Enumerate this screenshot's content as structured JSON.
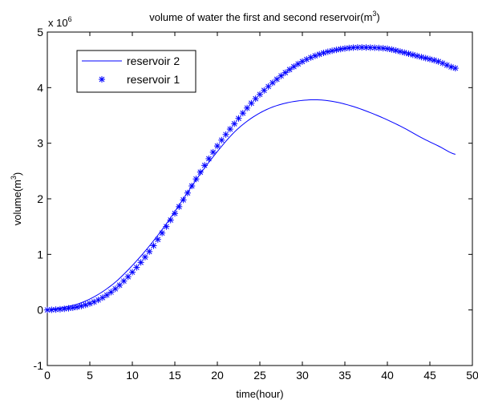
{
  "chart_data": {
    "type": "line",
    "title_main": "volume of water the first and second reservoir(m",
    "title_sup": "3",
    "title_end": ")",
    "xlabel": "time(hour)",
    "ylabel_main": "volume(m",
    "ylabel_sup": "3",
    "ylabel_end": ")",
    "y_multiplier_base": "x 10",
    "y_multiplier_exp": "6",
    "xlim": [
      0,
      50
    ],
    "ylim": [
      -1,
      5
    ],
    "x_ticks": [
      0,
      5,
      10,
      15,
      20,
      25,
      30,
      35,
      40,
      45,
      50
    ],
    "x_tick_labels": [
      "0",
      "5",
      "10",
      "15",
      "20",
      "25",
      "30",
      "35",
      "40",
      "45",
      "50"
    ],
    "y_ticks": [
      -1,
      0,
      1,
      2,
      3,
      4,
      5
    ],
    "y_tick_labels": [
      "-1",
      "0",
      "1",
      "2",
      "3",
      "4",
      "5"
    ],
    "grid": false,
    "legend_position": "top-left",
    "series": [
      {
        "name": "reservoir 2",
        "style": "line",
        "color": "#0000ff",
        "x": [
          0,
          2,
          4,
          6,
          8,
          10,
          12,
          14,
          16,
          18,
          20,
          22,
          24,
          26,
          28,
          30,
          32,
          34,
          36,
          38,
          40,
          42,
          44,
          46,
          48
        ],
        "y": [
          0,
          0.05,
          0.13,
          0.28,
          0.5,
          0.8,
          1.15,
          1.55,
          2.0,
          2.45,
          2.85,
          3.2,
          3.45,
          3.62,
          3.72,
          3.77,
          3.78,
          3.74,
          3.66,
          3.55,
          3.42,
          3.27,
          3.1,
          2.95,
          2.8
        ]
      },
      {
        "name": "reservoir 1",
        "style": "markers",
        "marker": "asterisk",
        "color": "#0000ff",
        "x": [
          0,
          2,
          4,
          6,
          8,
          10,
          12,
          14,
          16,
          18,
          20,
          22,
          24,
          26,
          28,
          30,
          32,
          34,
          36,
          38,
          40,
          42,
          44,
          46,
          48
        ],
        "y": [
          0,
          0.02,
          0.07,
          0.18,
          0.38,
          0.68,
          1.05,
          1.5,
          1.98,
          2.48,
          2.95,
          3.35,
          3.72,
          4.02,
          4.27,
          4.47,
          4.6,
          4.68,
          4.72,
          4.72,
          4.7,
          4.63,
          4.55,
          4.47,
          4.35
        ]
      }
    ]
  }
}
